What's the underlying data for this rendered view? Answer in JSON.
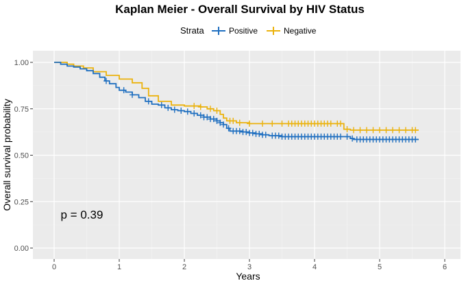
{
  "chart_data": {
    "type": "line",
    "title": "Kaplan Meier - Overall Survival by HIV Status",
    "xlabel": "Years",
    "ylabel": "Overall survival probability",
    "xlim": [
      0,
      6
    ],
    "ylim": [
      0,
      1
    ],
    "x_ticks": [
      0,
      1,
      2,
      3,
      4,
      5,
      6
    ],
    "y_ticks": [
      0.0,
      0.25,
      0.5,
      0.75,
      1.0
    ],
    "x_tick_labels": [
      "0",
      "1",
      "2",
      "3",
      "4",
      "5",
      "6"
    ],
    "y_tick_labels": [
      "0.00",
      "0.25",
      "0.50",
      "0.75",
      "1.00"
    ],
    "legend": {
      "title": "Strata",
      "position": "top"
    },
    "annotation": {
      "text": "p = 0.39",
      "x": 0.1,
      "y": 0.18
    },
    "grid": true,
    "series": [
      {
        "name": "Positive",
        "color": "#1F6FC0",
        "steps": [
          [
            0,
            1.0
          ],
          [
            0.1,
            0.99
          ],
          [
            0.2,
            0.98
          ],
          [
            0.3,
            0.975
          ],
          [
            0.4,
            0.965
          ],
          [
            0.5,
            0.955
          ],
          [
            0.6,
            0.94
          ],
          [
            0.7,
            0.92
          ],
          [
            0.78,
            0.9
          ],
          [
            0.85,
            0.885
          ],
          [
            0.95,
            0.865
          ],
          [
            1.0,
            0.85
          ],
          [
            1.1,
            0.84
          ],
          [
            1.2,
            0.825
          ],
          [
            1.3,
            0.81
          ],
          [
            1.4,
            0.79
          ],
          [
            1.5,
            0.775
          ],
          [
            1.6,
            0.77
          ],
          [
            1.7,
            0.755
          ],
          [
            1.8,
            0.745
          ],
          [
            1.9,
            0.74
          ],
          [
            2.0,
            0.735
          ],
          [
            2.1,
            0.725
          ],
          [
            2.2,
            0.715
          ],
          [
            2.3,
            0.705
          ],
          [
            2.4,
            0.695
          ],
          [
            2.5,
            0.685
          ],
          [
            2.55,
            0.675
          ],
          [
            2.6,
            0.665
          ],
          [
            2.65,
            0.645
          ],
          [
            2.7,
            0.63
          ],
          [
            2.9,
            0.625
          ],
          [
            3.0,
            0.62
          ],
          [
            3.1,
            0.615
          ],
          [
            3.2,
            0.61
          ],
          [
            3.3,
            0.605
          ],
          [
            3.5,
            0.6
          ],
          [
            4.2,
            0.6
          ],
          [
            4.55,
            0.59
          ],
          [
            4.6,
            0.585
          ],
          [
            5.6,
            0.585
          ]
        ],
        "censor_x": [
          0.8,
          1.07,
          1.2,
          1.45,
          1.65,
          1.75,
          1.85,
          1.95,
          2.05,
          2.15,
          2.25,
          2.3,
          2.35,
          2.4,
          2.45,
          2.5,
          2.55,
          2.6,
          2.68,
          2.75,
          2.8,
          2.85,
          2.9,
          2.95,
          3.0,
          3.05,
          3.1,
          3.15,
          3.2,
          3.25,
          3.35,
          3.4,
          3.45,
          3.5,
          3.55,
          3.6,
          3.65,
          3.7,
          3.75,
          3.8,
          3.85,
          3.9,
          3.95,
          4.0,
          4.05,
          4.1,
          4.15,
          4.2,
          4.25,
          4.3,
          4.35,
          4.4,
          4.5,
          4.58,
          4.65,
          4.7,
          4.75,
          4.8,
          4.85,
          4.9,
          4.95,
          5.0,
          5.05,
          5.1,
          5.15,
          5.2,
          5.25,
          5.3,
          5.35,
          5.4,
          5.45,
          5.5,
          5.55
        ]
      },
      {
        "name": "Negative",
        "color": "#EBB20C",
        "steps": [
          [
            0,
            1.0
          ],
          [
            0.2,
            0.99
          ],
          [
            0.3,
            0.98
          ],
          [
            0.45,
            0.97
          ],
          [
            0.6,
            0.95
          ],
          [
            0.8,
            0.93
          ],
          [
            1.0,
            0.91
          ],
          [
            1.2,
            0.89
          ],
          [
            1.35,
            0.86
          ],
          [
            1.45,
            0.82
          ],
          [
            1.6,
            0.79
          ],
          [
            1.8,
            0.77
          ],
          [
            2.0,
            0.765
          ],
          [
            2.25,
            0.76
          ],
          [
            2.35,
            0.75
          ],
          [
            2.45,
            0.74
          ],
          [
            2.55,
            0.72
          ],
          [
            2.6,
            0.7
          ],
          [
            2.65,
            0.685
          ],
          [
            2.8,
            0.675
          ],
          [
            3.0,
            0.67
          ],
          [
            4.3,
            0.67
          ],
          [
            4.45,
            0.64
          ],
          [
            4.55,
            0.635
          ],
          [
            5.6,
            0.635
          ]
        ],
        "censor_x": [
          2.15,
          2.25,
          2.4,
          2.5,
          2.7,
          2.75,
          2.85,
          3.0,
          3.2,
          3.35,
          3.5,
          3.6,
          3.65,
          3.7,
          3.75,
          3.8,
          3.85,
          3.9,
          3.95,
          4.0,
          4.05,
          4.1,
          4.15,
          4.2,
          4.25,
          4.35,
          4.4,
          4.5,
          4.6,
          4.7,
          4.8,
          4.9,
          5.0,
          5.1,
          5.2,
          5.3,
          5.4,
          5.5,
          5.55
        ]
      }
    ]
  }
}
